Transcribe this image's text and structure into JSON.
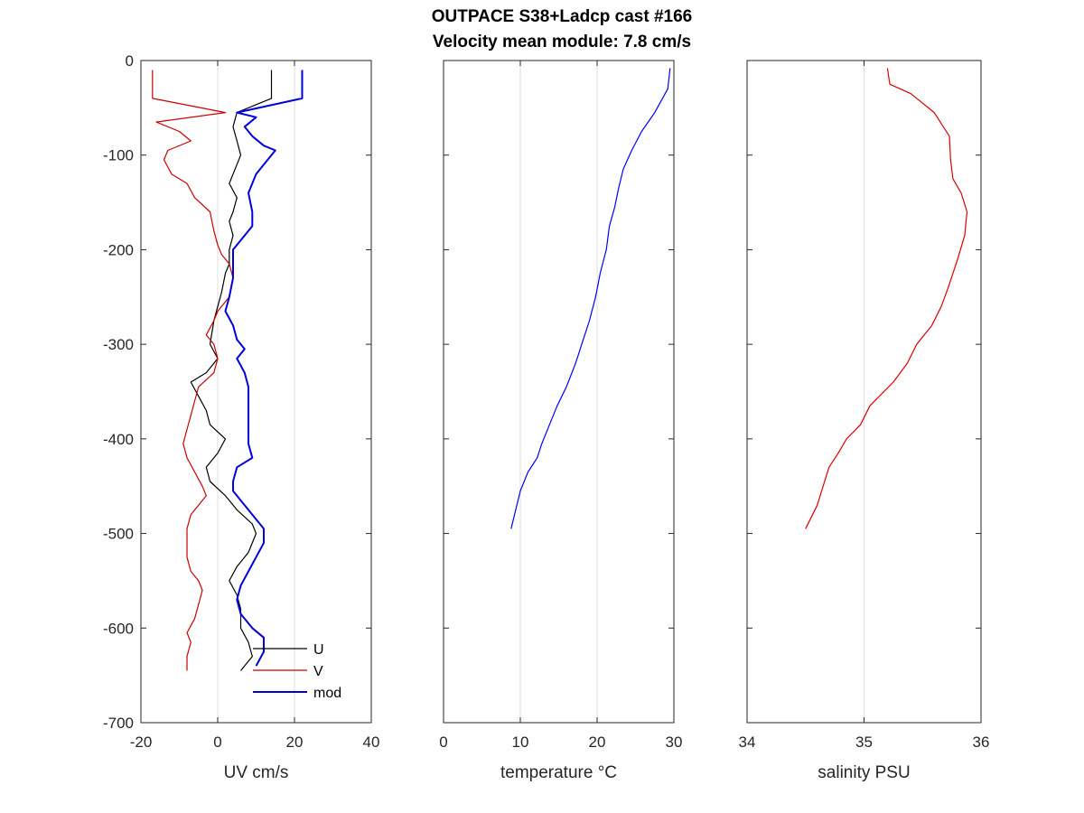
{
  "figure": {
    "title_line1": "OUTPACE S38+Ladcp cast #166",
    "title_line2": "Velocity mean module:  7.8 cm/s"
  },
  "chart_data": [
    {
      "type": "line",
      "xlabel": "UV cm/s",
      "ylabel": "",
      "xlim": [
        -20,
        40
      ],
      "ylim": [
        -700,
        0
      ],
      "xticks": [
        -20,
        0,
        20,
        40
      ],
      "yticks": [
        0,
        -100,
        -200,
        -300,
        -400,
        -500,
        -600,
        -700
      ],
      "grid": "x-only",
      "legend_position": "bottom-right",
      "series": [
        {
          "name": "U",
          "color": "#000000",
          "points": [
            [
              14,
              -10
            ],
            [
              14,
              -40
            ],
            [
              5,
              -55
            ],
            [
              4,
              -70
            ],
            [
              5,
              -85
            ],
            [
              6,
              -100
            ],
            [
              4,
              -120
            ],
            [
              3,
              -130
            ],
            [
              5,
              -145
            ],
            [
              4,
              -160
            ],
            [
              3,
              -170
            ],
            [
              4,
              -185
            ],
            [
              3,
              -200
            ],
            [
              3,
              -215
            ],
            [
              2,
              -225
            ],
            [
              1,
              -245
            ],
            [
              0,
              -260
            ],
            [
              -1,
              -275
            ],
            [
              -2,
              -300
            ],
            [
              0,
              -315
            ],
            [
              -3,
              -330
            ],
            [
              -7,
              -340
            ],
            [
              -5,
              -355
            ],
            [
              -3,
              -370
            ],
            [
              -2,
              -385
            ],
            [
              2,
              -400
            ],
            [
              0,
              -415
            ],
            [
              -3,
              -430
            ],
            [
              -2,
              -445
            ],
            [
              2,
              -460
            ],
            [
              5,
              -475
            ],
            [
              9,
              -490
            ],
            [
              10,
              -500
            ],
            [
              8,
              -520
            ],
            [
              5,
              -535
            ],
            [
              3,
              -550
            ],
            [
              5,
              -565
            ],
            [
              6,
              -580
            ],
            [
              6,
              -600
            ],
            [
              8,
              -615
            ],
            [
              9,
              -630
            ],
            [
              6,
              -645
            ]
          ]
        },
        {
          "name": "V",
          "color": "#cc0000",
          "points": [
            [
              -17,
              -10
            ],
            [
              -17,
              -40
            ],
            [
              2,
              -55
            ],
            [
              -16,
              -65
            ],
            [
              -10,
              -75
            ],
            [
              -7,
              -85
            ],
            [
              -13,
              -95
            ],
            [
              -14,
              -105
            ],
            [
              -12,
              -120
            ],
            [
              -8,
              -130
            ],
            [
              -6,
              -145
            ],
            [
              -2,
              -160
            ],
            [
              -1,
              -180
            ],
            [
              0,
              -195
            ],
            [
              1,
              -205
            ],
            [
              3,
              -215
            ],
            [
              4,
              -230
            ],
            [
              3,
              -250
            ],
            [
              0,
              -265
            ],
            [
              -1,
              -275
            ],
            [
              -3,
              -290
            ],
            [
              -1,
              -300
            ],
            [
              0,
              -315
            ],
            [
              -1,
              -330
            ],
            [
              -5,
              -345
            ],
            [
              -6,
              -360
            ],
            [
              -7,
              -375
            ],
            [
              -8,
              -390
            ],
            [
              -9,
              -405
            ],
            [
              -8,
              -420
            ],
            [
              -6,
              -435
            ],
            [
              -4,
              -450
            ],
            [
              -3,
              -460
            ],
            [
              -5,
              -470
            ],
            [
              -7,
              -480
            ],
            [
              -8,
              -495
            ],
            [
              -8,
              -510
            ],
            [
              -8,
              -525
            ],
            [
              -7,
              -540
            ],
            [
              -5,
              -550
            ],
            [
              -4,
              -560
            ],
            [
              -5,
              -575
            ],
            [
              -6,
              -590
            ],
            [
              -8,
              -605
            ],
            [
              -7,
              -615
            ],
            [
              -8,
              -630
            ],
            [
              -8,
              -645
            ]
          ]
        },
        {
          "name": "mod",
          "color": "#0000dd",
          "points": [
            [
              22,
              -10
            ],
            [
              22,
              -40
            ],
            [
              5,
              -55
            ],
            [
              10,
              -60
            ],
            [
              7,
              -70
            ],
            [
              9,
              -80
            ],
            [
              12,
              -90
            ],
            [
              15,
              -95
            ],
            [
              13,
              -105
            ],
            [
              10,
              -120
            ],
            [
              8,
              -140
            ],
            [
              9,
              -160
            ],
            [
              9,
              -175
            ],
            [
              6,
              -190
            ],
            [
              4,
              -200
            ],
            [
              4,
              -215
            ],
            [
              4,
              -230
            ],
            [
              3,
              -250
            ],
            [
              2,
              -265
            ],
            [
              4,
              -280
            ],
            [
              5,
              -295
            ],
            [
              7,
              -305
            ],
            [
              5,
              -315
            ],
            [
              7,
              -330
            ],
            [
              8,
              -345
            ],
            [
              8,
              -360
            ],
            [
              8,
              -375
            ],
            [
              8,
              -390
            ],
            [
              8,
              -405
            ],
            [
              9,
              -420
            ],
            [
              5,
              -430
            ],
            [
              4,
              -445
            ],
            [
              4,
              -455
            ],
            [
              7,
              -470
            ],
            [
              10,
              -485
            ],
            [
              12,
              -495
            ],
            [
              12,
              -510
            ],
            [
              10,
              -525
            ],
            [
              8,
              -540
            ],
            [
              6,
              -555
            ],
            [
              5,
              -570
            ],
            [
              6,
              -585
            ],
            [
              9,
              -600
            ],
            [
              12,
              -610
            ],
            [
              12,
              -625
            ],
            [
              10,
              -640
            ]
          ]
        }
      ]
    },
    {
      "type": "line",
      "xlabel": "temperature °C",
      "ylabel": "",
      "xlim": [
        0,
        30
      ],
      "ylim": [
        -700,
        0
      ],
      "xticks": [
        0,
        10,
        20,
        30
      ],
      "grid": "x-only",
      "series": [
        {
          "name": "",
          "color": "#0000ff",
          "points": [
            [
              29.5,
              -8
            ],
            [
              29.2,
              -30
            ],
            [
              27.5,
              -55
            ],
            [
              25.8,
              -75
            ],
            [
              24.5,
              -95
            ],
            [
              23.4,
              -115
            ],
            [
              22.8,
              -135
            ],
            [
              22.3,
              -155
            ],
            [
              21.6,
              -175
            ],
            [
              21.2,
              -200
            ],
            [
              20.4,
              -225
            ],
            [
              19.8,
              -250
            ],
            [
              19.0,
              -275
            ],
            [
              18.0,
              -300
            ],
            [
              17.2,
              -320
            ],
            [
              16.0,
              -345
            ],
            [
              14.8,
              -365
            ],
            [
              13.8,
              -385
            ],
            [
              12.8,
              -405
            ],
            [
              12.2,
              -420
            ],
            [
              11.0,
              -435
            ],
            [
              10.0,
              -455
            ],
            [
              9.4,
              -475
            ],
            [
              8.8,
              -495
            ]
          ]
        }
      ]
    },
    {
      "type": "line",
      "xlabel": "salinity PSU",
      "ylabel": "",
      "xlim": [
        34,
        36
      ],
      "ylim": [
        -700,
        0
      ],
      "xticks": [
        34,
        35,
        36
      ],
      "grid": "x-only",
      "series": [
        {
          "name": "",
          "color": "#dd0000",
          "points": [
            [
              35.2,
              -8
            ],
            [
              35.22,
              -25
            ],
            [
              35.4,
              -35
            ],
            [
              35.6,
              -55
            ],
            [
              35.73,
              -80
            ],
            [
              35.74,
              -105
            ],
            [
              35.76,
              -125
            ],
            [
              35.83,
              -140
            ],
            [
              35.88,
              -160
            ],
            [
              35.86,
              -185
            ],
            [
              35.8,
              -210
            ],
            [
              35.72,
              -240
            ],
            [
              35.66,
              -260
            ],
            [
              35.58,
              -280
            ],
            [
              35.45,
              -300
            ],
            [
              35.37,
              -320
            ],
            [
              35.25,
              -340
            ],
            [
              35.05,
              -365
            ],
            [
              34.97,
              -385
            ],
            [
              34.85,
              -400
            ],
            [
              34.78,
              -415
            ],
            [
              34.7,
              -430
            ],
            [
              34.65,
              -450
            ],
            [
              34.6,
              -470
            ],
            [
              34.5,
              -495
            ]
          ]
        }
      ]
    }
  ]
}
